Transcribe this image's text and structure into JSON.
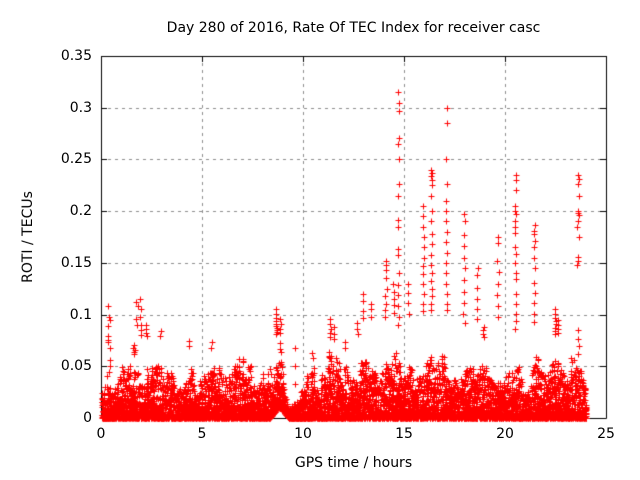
{
  "chart_data": {
    "type": "scatter",
    "title": "Day 280 of 2016, Rate Of TEC Index for receiver casc",
    "xlabel": "GPS time / hours",
    "ylabel": "ROTI / TECUs",
    "xlim": [
      0,
      25
    ],
    "ylim": [
      0,
      0.35
    ],
    "xticks": [
      "0",
      "5",
      "10",
      "15",
      "20",
      "25"
    ],
    "yticks": [
      "0",
      "0.05",
      "0.1",
      "0.15",
      "0.2",
      "0.25",
      "0.3",
      "0.35"
    ],
    "grid": "dashed",
    "legend": "none",
    "marker": "plus",
    "marker_color": "#ff0000",
    "grid_color": "#8c8c8c",
    "axis_color": "#000000",
    "x_data_range": [
      0.03,
      24.0
    ],
    "band_envelope": [
      [
        0.0,
        0.032
      ],
      [
        0.3,
        0.046
      ],
      [
        0.5,
        0.032
      ],
      [
        0.8,
        0.042
      ],
      [
        1.0,
        0.052
      ],
      [
        1.2,
        0.046
      ],
      [
        1.4,
        0.056
      ],
      [
        1.6,
        0.065
      ],
      [
        1.8,
        0.052
      ],
      [
        2.0,
        0.062
      ],
      [
        2.2,
        0.056
      ],
      [
        2.4,
        0.048
      ],
      [
        2.6,
        0.055
      ],
      [
        2.9,
        0.065
      ],
      [
        3.2,
        0.05
      ],
      [
        3.5,
        0.058
      ],
      [
        3.8,
        0.048
      ],
      [
        4.1,
        0.052
      ],
      [
        4.4,
        0.058
      ],
      [
        4.7,
        0.042
      ],
      [
        5.0,
        0.048
      ],
      [
        5.3,
        0.06
      ],
      [
        5.6,
        0.07
      ],
      [
        5.9,
        0.048
      ],
      [
        6.2,
        0.056
      ],
      [
        6.5,
        0.052
      ],
      [
        6.8,
        0.06
      ],
      [
        7.1,
        0.055
      ],
      [
        7.4,
        0.056
      ],
      [
        7.7,
        0.052
      ],
      [
        8.0,
        0.06
      ],
      [
        8.3,
        0.058
      ],
      [
        8.6,
        0.085
      ],
      [
        8.8,
        0.092
      ],
      [
        9.0,
        0.05
      ],
      [
        9.25,
        0.018
      ],
      [
        9.5,
        0.015
      ],
      [
        9.75,
        0.022
      ],
      [
        10.0,
        0.035
      ],
      [
        10.25,
        0.05
      ],
      [
        10.5,
        0.06
      ],
      [
        10.75,
        0.045
      ],
      [
        11.0,
        0.052
      ],
      [
        11.3,
        0.07
      ],
      [
        11.6,
        0.062
      ],
      [
        11.9,
        0.066
      ],
      [
        12.2,
        0.05
      ],
      [
        12.5,
        0.058
      ],
      [
        12.8,
        0.06
      ],
      [
        13.1,
        0.068
      ],
      [
        13.4,
        0.075
      ],
      [
        13.7,
        0.062
      ],
      [
        14.0,
        0.07
      ],
      [
        14.3,
        0.06
      ],
      [
        14.6,
        0.07
      ],
      [
        14.9,
        0.048
      ],
      [
        15.2,
        0.058
      ],
      [
        15.5,
        0.045
      ],
      [
        15.8,
        0.06
      ],
      [
        16.1,
        0.065
      ],
      [
        16.4,
        0.075
      ],
      [
        16.7,
        0.055
      ],
      [
        17.0,
        0.065
      ],
      [
        17.3,
        0.06
      ],
      [
        17.6,
        0.052
      ],
      [
        17.9,
        0.06
      ],
      [
        18.2,
        0.048
      ],
      [
        18.5,
        0.055
      ],
      [
        18.8,
        0.07
      ],
      [
        19.1,
        0.055
      ],
      [
        19.4,
        0.05
      ],
      [
        19.7,
        0.06
      ],
      [
        20.0,
        0.045
      ],
      [
        20.3,
        0.055
      ],
      [
        20.6,
        0.065
      ],
      [
        20.9,
        0.038
      ],
      [
        21.2,
        0.055
      ],
      [
        21.5,
        0.075
      ],
      [
        21.8,
        0.06
      ],
      [
        22.1,
        0.055
      ],
      [
        22.4,
        0.08
      ],
      [
        22.7,
        0.065
      ],
      [
        23.0,
        0.045
      ],
      [
        23.3,
        0.06
      ],
      [
        23.6,
        0.055
      ],
      [
        23.9,
        0.045
      ],
      [
        24.0,
        0.04
      ]
    ],
    "spike_columns": [
      {
        "x": 0.35,
        "ys": [
          0.108,
          0.098,
          0.089,
          0.079,
          0.075,
          0.073
        ]
      },
      {
        "x": 0.42,
        "ys": [
          0.095,
          0.068,
          0.056,
          0.05,
          0.044
        ]
      },
      {
        "x": 1.62,
        "ys": [
          0.071,
          0.068,
          0.066,
          0.064,
          0.062
        ]
      },
      {
        "x": 1.78,
        "ys": [
          0.112,
          0.108,
          0.096,
          0.09
        ]
      },
      {
        "x": 1.95,
        "ys": [
          0.115,
          0.105,
          0.098,
          0.09,
          0.085,
          0.08
        ]
      },
      {
        "x": 2.25,
        "ys": [
          0.09,
          0.086,
          0.082,
          0.079
        ]
      },
      {
        "x": 2.95,
        "ys": [
          0.084,
          0.079
        ]
      },
      {
        "x": 4.35,
        "ys": [
          0.074,
          0.07
        ]
      },
      {
        "x": 5.45,
        "ys": [
          0.073,
          0.068
        ]
      },
      {
        "x": 8.68,
        "ys": [
          0.105,
          0.101,
          0.097,
          0.094,
          0.091,
          0.089,
          0.087,
          0.085,
          0.083,
          0.081
        ]
      },
      {
        "x": 8.85,
        "ys": [
          0.096,
          0.091,
          0.086,
          0.082
        ]
      },
      {
        "x": 9.6,
        "ys": [
          0.068,
          0.05,
          0.033
        ]
      },
      {
        "x": 10.45,
        "ys": [
          0.063,
          0.058
        ]
      },
      {
        "x": 11.35,
        "ys": [
          0.096,
          0.091,
          0.086,
          0.082,
          0.078
        ]
      },
      {
        "x": 11.55,
        "ys": [
          0.088,
          0.081,
          0.076
        ]
      },
      {
        "x": 12.05,
        "ys": [
          0.073,
          0.068
        ]
      },
      {
        "x": 12.7,
        "ys": [
          0.092,
          0.086,
          0.081
        ]
      },
      {
        "x": 13.0,
        "ys": [
          0.12,
          0.113,
          0.103,
          0.097
        ]
      },
      {
        "x": 13.35,
        "ys": [
          0.11,
          0.105,
          0.098
        ]
      },
      {
        "x": 14.1,
        "ys": [
          0.152,
          0.148,
          0.143,
          0.135,
          0.125,
          0.118,
          0.11,
          0.104,
          0.098
        ]
      },
      {
        "x": 14.5,
        "ys": [
          0.13,
          0.122,
          0.115,
          0.109,
          0.102
        ]
      },
      {
        "x": 14.72,
        "ys": [
          0.315,
          0.305,
          0.297,
          0.271,
          0.265,
          0.25,
          0.226,
          0.215,
          0.191,
          0.185,
          0.163,
          0.158,
          0.14,
          0.129,
          0.119,
          0.108,
          0.098,
          0.09
        ]
      },
      {
        "x": 15.2,
        "ys": [
          0.13,
          0.121,
          0.111,
          0.101
        ]
      },
      {
        "x": 15.95,
        "ys": [
          0.205,
          0.195,
          0.185,
          0.175,
          0.165,
          0.155,
          0.147,
          0.139,
          0.13,
          0.12,
          0.11,
          0.103
        ]
      },
      {
        "x": 16.35,
        "ys": [
          0.24,
          0.237,
          0.234,
          0.23,
          0.225,
          0.215,
          0.2,
          0.19,
          0.178,
          0.168,
          0.158,
          0.148,
          0.14,
          0.132,
          0.125,
          0.118,
          0.11,
          0.104
        ]
      },
      {
        "x": 17.1,
        "ys": [
          0.3,
          0.285,
          0.25,
          0.226,
          0.21,
          0.2,
          0.19,
          0.18,
          0.17,
          0.16,
          0.15,
          0.14,
          0.13,
          0.12,
          0.11,
          0.104
        ]
      },
      {
        "x": 17.98,
        "ys": [
          0.197,
          0.19,
          0.177,
          0.166,
          0.155,
          0.145,
          0.133,
          0.122,
          0.111,
          0.101,
          0.092
        ]
      },
      {
        "x": 18.63,
        "ys": [
          0.145,
          0.138,
          0.126,
          0.115,
          0.105,
          0.096
        ]
      },
      {
        "x": 18.95,
        "ys": [
          0.088,
          0.085,
          0.081,
          0.078
        ]
      },
      {
        "x": 19.65,
        "ys": [
          0.175,
          0.169,
          0.152,
          0.141,
          0.13,
          0.119,
          0.108,
          0.098
        ]
      },
      {
        "x": 20.54,
        "ys": [
          0.235,
          0.23,
          0.22,
          0.205,
          0.2,
          0.197,
          0.19,
          0.185,
          0.179,
          0.165,
          0.159,
          0.15,
          0.14,
          0.134,
          0.12,
          0.11,
          0.101,
          0.094,
          0.086
        ]
      },
      {
        "x": 21.45,
        "ys": [
          0.187,
          0.181,
          0.178,
          0.171,
          0.165,
          0.155,
          0.145,
          0.131,
          0.121,
          0.111,
          0.101,
          0.093
        ]
      },
      {
        "x": 22.5,
        "ys": [
          0.105,
          0.101,
          0.097,
          0.094,
          0.091,
          0.087,
          0.084,
          0.081
        ]
      },
      {
        "x": 22.62,
        "ys": [
          0.095,
          0.09,
          0.086,
          0.082
        ]
      },
      {
        "x": 23.62,
        "ys": [
          0.235,
          0.231,
          0.226,
          0.215,
          0.2,
          0.198,
          0.196,
          0.19,
          0.185,
          0.175,
          0.156,
          0.152,
          0.148,
          0.085,
          0.076,
          0.07,
          0.062
        ]
      }
    ],
    "floor_bumps": [
      {
        "center": 8.8,
        "halfwidth": 0.45,
        "peak": 0.012
      }
    ],
    "density": {
      "bin_hours": 0.05,
      "points_per_bin": 14,
      "skew": 2.4
    },
    "render_seed": 280
  }
}
